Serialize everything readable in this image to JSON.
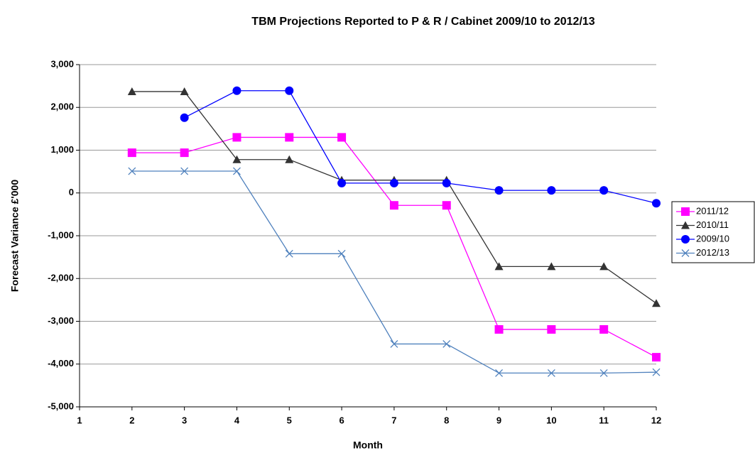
{
  "chart_data": {
    "type": "line",
    "title": "TBM Projections Reported to  P & R / Cabinet 2009/10 to 2012/13",
    "x_label": "Month",
    "y_label": "Forecast Variance £'000",
    "x": [
      1,
      2,
      3,
      4,
      5,
      6,
      7,
      8,
      9,
      10,
      11,
      12
    ],
    "xlim": [
      1,
      12
    ],
    "xticks": [
      1,
      2,
      3,
      4,
      5,
      6,
      7,
      8,
      9,
      10,
      11,
      12
    ],
    "ylim": [
      -5000,
      3000
    ],
    "yticks": [
      {
        "value": -5000,
        "label": "-5,000"
      },
      {
        "value": -4000,
        "label": "-4,000"
      },
      {
        "value": -3000,
        "label": "-3,000"
      },
      {
        "value": -2000,
        "label": "-2,000"
      },
      {
        "value": -1000,
        "label": "-1,000"
      },
      0,
      {
        "value": 1000,
        "label": "1,000"
      },
      {
        "value": 2000,
        "label": "2,000"
      },
      {
        "value": 3000,
        "label": "3,000"
      }
    ],
    "grid": true,
    "legend": "right",
    "series": [
      {
        "name": "2011/12",
        "color": "#ff00ff",
        "marker": "square",
        "values": [
          null,
          940,
          940,
          1300,
          1300,
          1300,
          -290,
          -290,
          -3190,
          -3190,
          -3190,
          -3840
        ]
      },
      {
        "name": "2010/11",
        "color": "#333333",
        "marker": "triangle",
        "values": [
          null,
          2370,
          2370,
          780,
          780,
          300,
          300,
          300,
          -1720,
          -1720,
          -1720,
          -2580
        ]
      },
      {
        "name": "2009/10",
        "color": "#0000ff",
        "marker": "circle",
        "values": [
          null,
          null,
          1760,
          2390,
          2390,
          230,
          230,
          230,
          60,
          60,
          60,
          -240
        ]
      },
      {
        "name": "2012/13",
        "color": "#4f81bd",
        "marker": "x",
        "values": [
          null,
          510,
          510,
          510,
          -1420,
          -1420,
          -3530,
          -3530,
          -4210,
          -4210,
          -4210,
          -4190
        ]
      }
    ]
  }
}
